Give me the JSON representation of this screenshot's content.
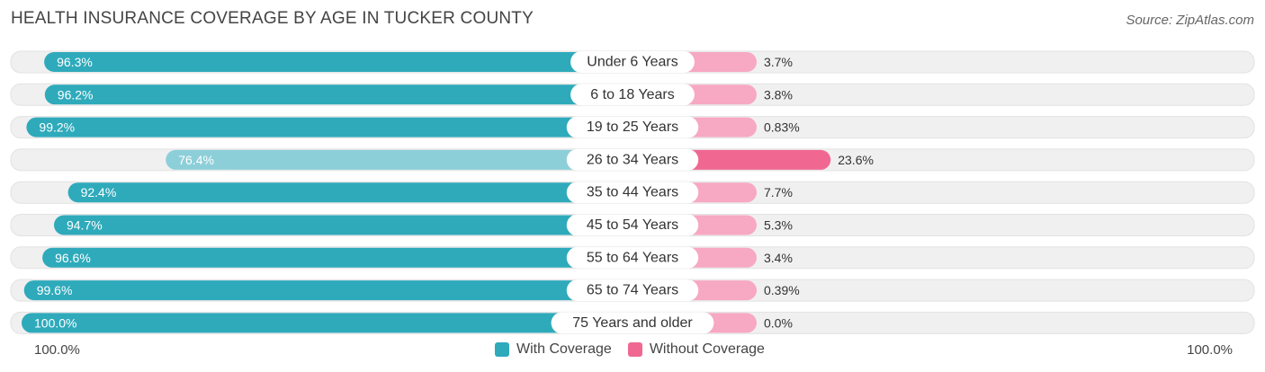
{
  "header": {
    "title": "HEALTH INSURANCE COVERAGE BY AGE IN TUCKER COUNTY",
    "source": "Source: ZipAtlas.com"
  },
  "colors": {
    "with_coverage": "#2eaabb",
    "with_coverage_light": "#8dcfd9",
    "without_coverage": "#f7a8c3",
    "without_coverage_strong": "#f06892",
    "row_bg": "#f0f0f0"
  },
  "chart_data": {
    "type": "bar",
    "orientation": "diverging-horizontal",
    "title": "HEALTH INSURANCE COVERAGE BY AGE IN TUCKER COUNTY",
    "categories": [
      "Under 6 Years",
      "6 to 18 Years",
      "19 to 25 Years",
      "26 to 34 Years",
      "35 to 44 Years",
      "45 to 54 Years",
      "55 to 64 Years",
      "65 to 74 Years",
      "75 Years and older"
    ],
    "series": [
      {
        "name": "With Coverage",
        "values": [
          96.3,
          96.2,
          99.2,
          76.4,
          92.4,
          94.7,
          96.6,
          99.6,
          100.0
        ],
        "labels": [
          "96.3%",
          "96.2%",
          "99.2%",
          "76.4%",
          "92.4%",
          "94.7%",
          "96.6%",
          "99.6%",
          "100.0%"
        ]
      },
      {
        "name": "Without Coverage",
        "values": [
          3.7,
          3.8,
          0.83,
          23.6,
          7.7,
          5.3,
          3.4,
          0.39,
          0.0
        ],
        "labels": [
          "3.7%",
          "3.8%",
          "0.83%",
          "23.6%",
          "7.7%",
          "5.3%",
          "3.4%",
          "0.39%",
          "0.0%"
        ]
      }
    ],
    "axis": {
      "left_label": "100.0%",
      "right_label": "100.0%",
      "range": [
        0,
        100
      ]
    },
    "legend": [
      "With Coverage",
      "Without Coverage"
    ],
    "highlight_row": 3
  }
}
